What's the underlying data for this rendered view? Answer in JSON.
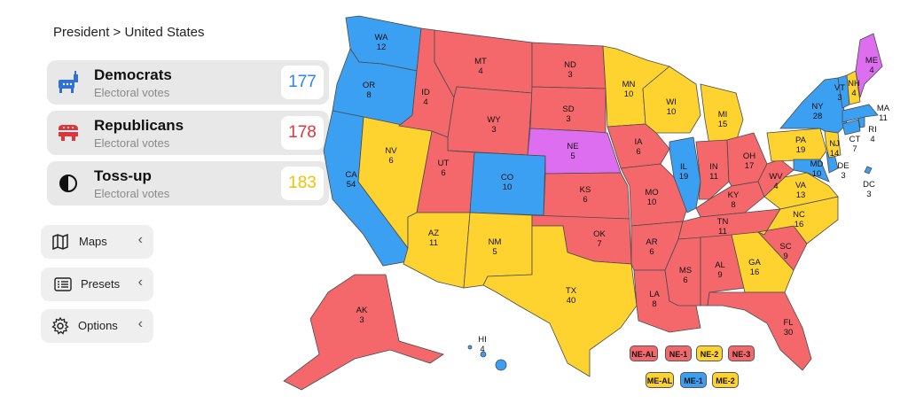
{
  "breadcrumb": "President > United States",
  "cards": [
    {
      "title": "Democrats",
      "subtitle": "Electoral votes",
      "value": "177",
      "color": "#2f86e6"
    },
    {
      "title": "Republicans",
      "subtitle": "Electoral votes",
      "value": "178",
      "color": "#e0343c"
    },
    {
      "title": "Toss-up",
      "subtitle": "Electoral votes",
      "value": "183",
      "color": "#f2c200"
    }
  ],
  "menu": {
    "maps": "Maps",
    "presets": "Presets",
    "options": "Options",
    "chevron": "‹"
  },
  "colors": {
    "dem": "#3b9ff2",
    "rep": "#f4686c",
    "toss": "#fed330",
    "split": "#dd6ef0"
  },
  "states": [
    {
      "abbr": "WA",
      "ev": "12",
      "party": "dem"
    },
    {
      "abbr": "OR",
      "ev": "8",
      "party": "dem"
    },
    {
      "abbr": "CA",
      "ev": "54",
      "party": "dem"
    },
    {
      "abbr": "NV",
      "ev": "6",
      "party": "toss"
    },
    {
      "abbr": "ID",
      "ev": "4",
      "party": "rep"
    },
    {
      "abbr": "MT",
      "ev": "4",
      "party": "rep"
    },
    {
      "abbr": "WY",
      "ev": "3",
      "party": "rep"
    },
    {
      "abbr": "UT",
      "ev": "6",
      "party": "rep"
    },
    {
      "abbr": "AZ",
      "ev": "11",
      "party": "toss"
    },
    {
      "abbr": "CO",
      "ev": "10",
      "party": "dem"
    },
    {
      "abbr": "NM",
      "ev": "5",
      "party": "toss"
    },
    {
      "abbr": "ND",
      "ev": "3",
      "party": "rep"
    },
    {
      "abbr": "SD",
      "ev": "3",
      "party": "rep"
    },
    {
      "abbr": "NE",
      "ev": "5",
      "party": "split"
    },
    {
      "abbr": "KS",
      "ev": "6",
      "party": "rep"
    },
    {
      "abbr": "OK",
      "ev": "7",
      "party": "rep"
    },
    {
      "abbr": "TX",
      "ev": "40",
      "party": "toss"
    },
    {
      "abbr": "MN",
      "ev": "10",
      "party": "toss"
    },
    {
      "abbr": "IA",
      "ev": "6",
      "party": "rep"
    },
    {
      "abbr": "MO",
      "ev": "10",
      "party": "rep"
    },
    {
      "abbr": "AR",
      "ev": "6",
      "party": "rep"
    },
    {
      "abbr": "LA",
      "ev": "8",
      "party": "rep"
    },
    {
      "abbr": "WI",
      "ev": "10",
      "party": "toss"
    },
    {
      "abbr": "IL",
      "ev": "19",
      "party": "dem"
    },
    {
      "abbr": "MI",
      "ev": "15",
      "party": "toss"
    },
    {
      "abbr": "IN",
      "ev": "11",
      "party": "rep"
    },
    {
      "abbr": "OH",
      "ev": "17",
      "party": "rep"
    },
    {
      "abbr": "KY",
      "ev": "8",
      "party": "rep"
    },
    {
      "abbr": "TN",
      "ev": "11",
      "party": "rep"
    },
    {
      "abbr": "MS",
      "ev": "6",
      "party": "rep"
    },
    {
      "abbr": "AL",
      "ev": "9",
      "party": "rep"
    },
    {
      "abbr": "GA",
      "ev": "16",
      "party": "toss"
    },
    {
      "abbr": "FL",
      "ev": "30",
      "party": "rep"
    },
    {
      "abbr": "SC",
      "ev": "9",
      "party": "rep"
    },
    {
      "abbr": "NC",
      "ev": "16",
      "party": "toss"
    },
    {
      "abbr": "VA",
      "ev": "13",
      "party": "toss"
    },
    {
      "abbr": "WV",
      "ev": "4",
      "party": "rep"
    },
    {
      "abbr": "PA",
      "ev": "19",
      "party": "toss"
    },
    {
      "abbr": "NY",
      "ev": "28",
      "party": "dem"
    },
    {
      "abbr": "MD",
      "ev": "10",
      "party": "dem"
    },
    {
      "abbr": "DE",
      "ev": "3",
      "party": "dem"
    },
    {
      "abbr": "DC",
      "ev": "3",
      "party": "dem"
    },
    {
      "abbr": "NJ",
      "ev": "14",
      "party": "toss"
    },
    {
      "abbr": "CT",
      "ev": "7",
      "party": "dem"
    },
    {
      "abbr": "RI",
      "ev": "4",
      "party": "dem"
    },
    {
      "abbr": "MA",
      "ev": "11",
      "party": "dem"
    },
    {
      "abbr": "VT",
      "ev": "3",
      "party": "dem"
    },
    {
      "abbr": "NH",
      "ev": "4",
      "party": "toss"
    },
    {
      "abbr": "ME",
      "ev": "4",
      "party": "split"
    },
    {
      "abbr": "AK",
      "ev": "3",
      "party": "rep"
    },
    {
      "abbr": "HI",
      "ev": "4",
      "party": "dem"
    }
  ],
  "districts": [
    {
      "label": "NE-AL",
      "party": "rep"
    },
    {
      "label": "NE-1",
      "party": "rep"
    },
    {
      "label": "NE-2",
      "party": "toss"
    },
    {
      "label": "NE-3",
      "party": "rep"
    },
    {
      "label": "ME-AL",
      "party": "toss"
    },
    {
      "label": "ME-1",
      "party": "dem"
    },
    {
      "label": "ME-2",
      "party": "toss"
    }
  ]
}
